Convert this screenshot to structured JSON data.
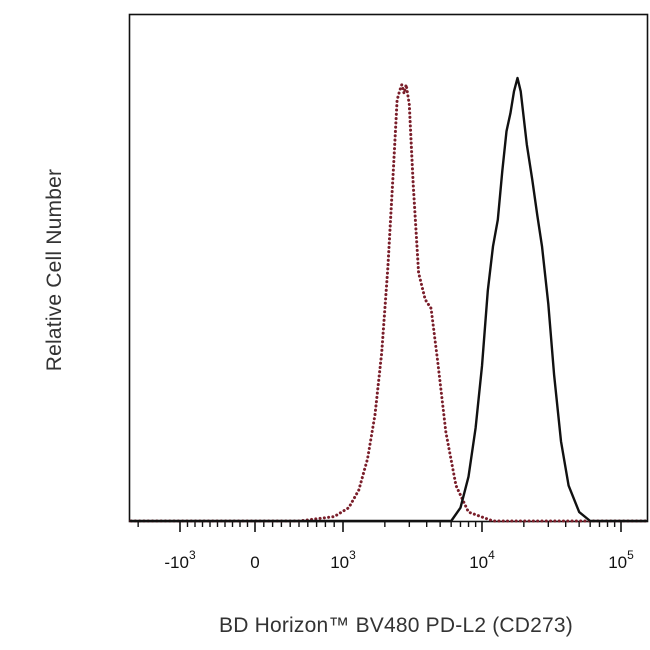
{
  "chart_data": {
    "type": "line",
    "title": "",
    "xlabel": "BD Horizon™ BV480 PD-L2 (CD273)",
    "ylabel": "Relative Cell Number",
    "x_scale": "biexponential",
    "xlim": [
      -3000,
      200000
    ],
    "ylim": [
      0,
      1
    ],
    "grid": false,
    "legend": "none",
    "x_ticks": [
      {
        "value": -1000,
        "base": "-10",
        "exp": "3"
      },
      {
        "value": 0,
        "base": "0",
        "exp": ""
      },
      {
        "value": 1000,
        "base": "10",
        "exp": "3"
      },
      {
        "value": 10000,
        "base": "10",
        "exp": "4"
      },
      {
        "value": 100000,
        "base": "10",
        "exp": "5"
      }
    ],
    "series": [
      {
        "style": "dotted",
        "color": "#7a1e2a",
        "x": [
          -3000,
          500,
          900,
          1100,
          1300,
          1500,
          1700,
          1900,
          2100,
          2300,
          2450,
          2550,
          2650,
          2750,
          2850,
          3000,
          3200,
          3500,
          3900,
          4300,
          4800,
          5500,
          6500,
          8000,
          12000,
          200000
        ],
        "y": [
          0.0,
          0.0,
          0.01,
          0.03,
          0.07,
          0.14,
          0.24,
          0.38,
          0.57,
          0.79,
          0.95,
          0.97,
          0.985,
          0.965,
          0.985,
          0.94,
          0.76,
          0.56,
          0.5,
          0.48,
          0.36,
          0.2,
          0.08,
          0.02,
          0.0,
          0.0
        ]
      },
      {
        "style": "solid",
        "color": "#111111",
        "x": [
          -3000,
          6000,
          7000,
          8000,
          9000,
          10000,
          11000,
          12000,
          13000,
          14000,
          15000,
          16000,
          17000,
          18000,
          19000,
          21000,
          23000,
          25000,
          27000,
          30000,
          33000,
          37000,
          42000,
          50000,
          60000,
          200000
        ],
        "y": [
          0.0,
          0.0,
          0.03,
          0.1,
          0.21,
          0.35,
          0.52,
          0.62,
          0.68,
          0.79,
          0.88,
          0.92,
          0.97,
          1.0,
          0.97,
          0.85,
          0.77,
          0.69,
          0.62,
          0.49,
          0.33,
          0.18,
          0.08,
          0.02,
          0.0,
          0.0
        ]
      }
    ]
  }
}
